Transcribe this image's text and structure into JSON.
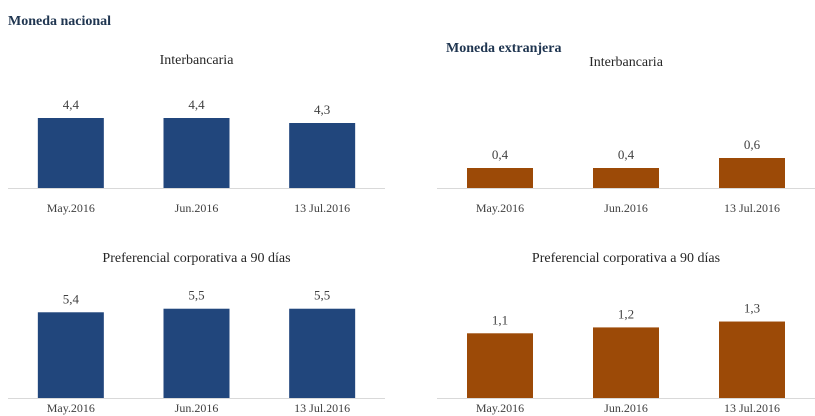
{
  "headings": [
    "Moneda nacional",
    "Moneda extranjera"
  ],
  "chart_data": [
    {
      "type": "bar",
      "title": "Interbancaria",
      "categories": [
        "May.2016",
        "Jun.2016",
        "13 Jul.2016"
      ],
      "values": [
        4.4,
        4.4,
        4.3
      ],
      "value_labels": [
        "4,4",
        "4,4",
        "4,3"
      ],
      "color": "#21467c",
      "ylim": [
        3,
        5
      ]
    },
    {
      "type": "bar",
      "title": "Interbancaria",
      "categories": [
        "May.2016",
        "Jun.2016",
        "13 Jul.2016"
      ],
      "values": [
        0.4,
        0.4,
        0.6
      ],
      "value_labels": [
        "0,4",
        "0,4",
        "0,6"
      ],
      "color": "#9c4a07",
      "ylim": [
        0,
        2
      ]
    },
    {
      "type": "bar",
      "title": "Preferencial corporativa a 90 días",
      "categories": [
        "May.2016",
        "Jun.2016",
        "13 Jul.2016"
      ],
      "values": [
        5.4,
        5.5,
        5.5
      ],
      "value_labels": [
        "5,4",
        "5,5",
        "5,5"
      ],
      "color": "#21467c",
      "ylim": [
        3,
        5.8
      ]
    },
    {
      "type": "bar",
      "title": "Preferencial corporativa a 90 días",
      "categories": [
        "May.2016",
        "Jun.2016",
        "13 Jul.2016"
      ],
      "values": [
        1.1,
        1.2,
        1.3
      ],
      "value_labels": [
        "1,1",
        "1,2",
        "1,3"
      ],
      "color": "#9c4a07",
      "ylim": [
        0,
        1.7
      ]
    }
  ]
}
